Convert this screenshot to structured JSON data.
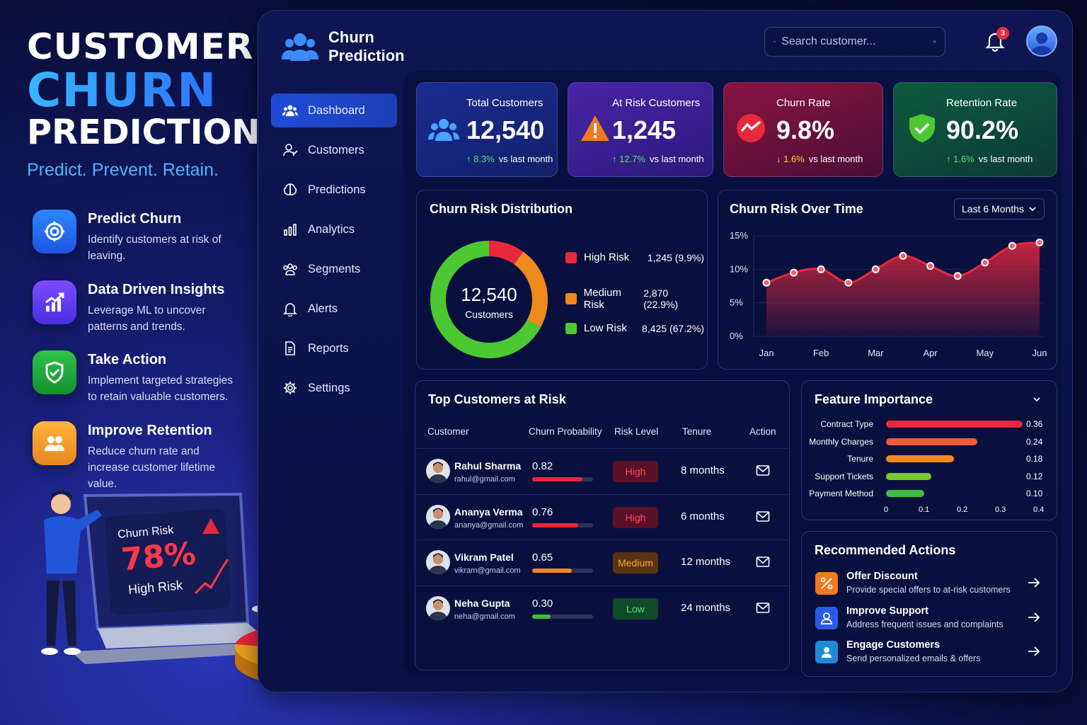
{
  "hero": {
    "line1": "CUSTOMER",
    "line2": "CHURN",
    "line3": "PREDICTION",
    "tagline": "Predict. Prevent. Retain."
  },
  "features": [
    {
      "title": "Predict Churn",
      "desc": "Identify customers at risk of leaving.",
      "icon": "target-icon",
      "color": "#1e6df0"
    },
    {
      "title": "Data Driven Insights",
      "desc": "Leverage ML to uncover patterns and trends.",
      "icon": "chart-up-icon",
      "color": "#5b3ff0"
    },
    {
      "title": "Take Action",
      "desc": "Implement targeted strategies to retain valuable customers.",
      "icon": "shield-check-icon",
      "color": "#1fa53e"
    },
    {
      "title": "Improve Retention",
      "desc": "Reduce churn rate and increase customer lifetime value.",
      "icon": "users-icon",
      "color": "#f0a21e"
    }
  ],
  "illustration": {
    "screen_title": "Churn Risk",
    "screen_value": "78%",
    "screen_label": "High Risk"
  },
  "brand": {
    "line1": "Churn",
    "line2": "Prediction"
  },
  "search": {
    "placeholder": "Search customer..."
  },
  "notifications": {
    "count": "3"
  },
  "sidebar": {
    "items": [
      {
        "label": "Dashboard",
        "icon": "users-icon",
        "active": true
      },
      {
        "label": "Customers",
        "icon": "customer-icon"
      },
      {
        "label": "Predictions",
        "icon": "brain-icon"
      },
      {
        "label": "Analytics",
        "icon": "bar-chart-icon"
      },
      {
        "label": "Segments",
        "icon": "segments-icon"
      },
      {
        "label": "Alerts",
        "icon": "bell-icon"
      },
      {
        "label": "Reports",
        "icon": "report-icon"
      },
      {
        "label": "Settings",
        "icon": "gear-icon"
      }
    ]
  },
  "stats": [
    {
      "label": "Total Customers",
      "value": "12,540",
      "delta": "↑ 8.3%",
      "delta_suffix": "vs last month",
      "color": "#15257a"
    },
    {
      "label": "At Risk Customers",
      "value": "1,245",
      "delta": "↑ 12.7%",
      "delta_suffix": "vs last month",
      "color": "#3a1f8a"
    },
    {
      "label": "Churn Rate",
      "value": "9.8%",
      "delta": "↓ 1.6%",
      "delta_suffix": "vs last month",
      "color": "#6b1038"
    },
    {
      "label": "Retention Rate",
      "value": "90.2%",
      "delta": "↑ 1.6%",
      "delta_suffix": "vs last month",
      "color": "#0e4a3a"
    }
  ],
  "distribution": {
    "title": "Churn Risk Distribution",
    "center_value": "12,540",
    "center_label": "Customers",
    "items": [
      {
        "label": "High Risk",
        "value": "1,245 (9.9%)",
        "share": 9.9,
        "color": "#e8283c"
      },
      {
        "label": "Medium Risk",
        "value": "2,870 (22.9%)",
        "share": 22.9,
        "color": "#f08a1e"
      },
      {
        "label": "Low Risk",
        "value": "8,425 (67.2%)",
        "share": 67.2,
        "color": "#4cc832"
      }
    ]
  },
  "chart_data": {
    "type": "area",
    "title": "Churn Risk Over Time",
    "categories": [
      "Jan",
      "Feb",
      "Mar",
      "Apr",
      "May",
      "Jun"
    ],
    "x": [
      0,
      0.5,
      1,
      1.5,
      2,
      2.5,
      3,
      3.5,
      4,
      4.5,
      5
    ],
    "values": [
      8,
      9.5,
      10,
      8,
      10,
      12,
      10.5,
      9,
      11,
      13.5,
      14
    ],
    "ylim": [
      0,
      15
    ],
    "yticks": [
      "0%",
      "5%",
      "10%",
      "15%"
    ],
    "range_select": "Last 6 Months",
    "color": "#e8283c"
  },
  "table": {
    "title": "Top Customers at Risk",
    "headers": [
      "Customer",
      "Churn Probability",
      "Risk Level",
      "Tenure",
      "Action"
    ],
    "rows": [
      {
        "name": "Rahul Sharma",
        "email": "rahul@gmail.com",
        "prob": "0.82",
        "probv": 0.82,
        "level": "High",
        "tenure": "8 months"
      },
      {
        "name": "Ananya Verma",
        "email": "ananya@gmail.com",
        "prob": "0.76",
        "probv": 0.76,
        "level": "High",
        "tenure": "6 months"
      },
      {
        "name": "Vikram Patel",
        "email": "vikram@gmail.com",
        "prob": "0.65",
        "probv": 0.65,
        "level": "Medium",
        "tenure": "12 months"
      },
      {
        "name": "Neha Gupta",
        "email": "neha@gmail.com",
        "prob": "0.30",
        "probv": 0.3,
        "level": "Low",
        "tenure": "24 months"
      }
    ]
  },
  "feature_importance": {
    "title": "Feature Importance",
    "items": [
      {
        "label": "Contract Type",
        "value": "0.36",
        "v": 0.36,
        "color": "#e8283c"
      },
      {
        "label": "Monthly Charges",
        "value": "0.24",
        "v": 0.24,
        "color": "#f05a3a"
      },
      {
        "label": "Tenure",
        "value": "0.18",
        "v": 0.18,
        "color": "#f08a1e"
      },
      {
        "label": "Support Tickets",
        "value": "0.12",
        "v": 0.12,
        "color": "#7cc832"
      },
      {
        "label": "Payment Method",
        "value": "0.10",
        "v": 0.1,
        "color": "#3cbf3c"
      }
    ],
    "ticks": [
      "0",
      "0.1",
      "0.2",
      "0.3",
      "0.4"
    ]
  },
  "recommended": {
    "title": "Recommended Actions",
    "items": [
      {
        "title": "Offer Discount",
        "desc": "Provide special offers to at-risk customers",
        "color": "#f07a1e"
      },
      {
        "title": "Improve Support",
        "desc": "Address frequent issues and complaints",
        "color": "#2a5be8"
      },
      {
        "title": "Engage Customers",
        "desc": "Send personalized emails & offers",
        "color": "#1e8ad8"
      }
    ]
  }
}
